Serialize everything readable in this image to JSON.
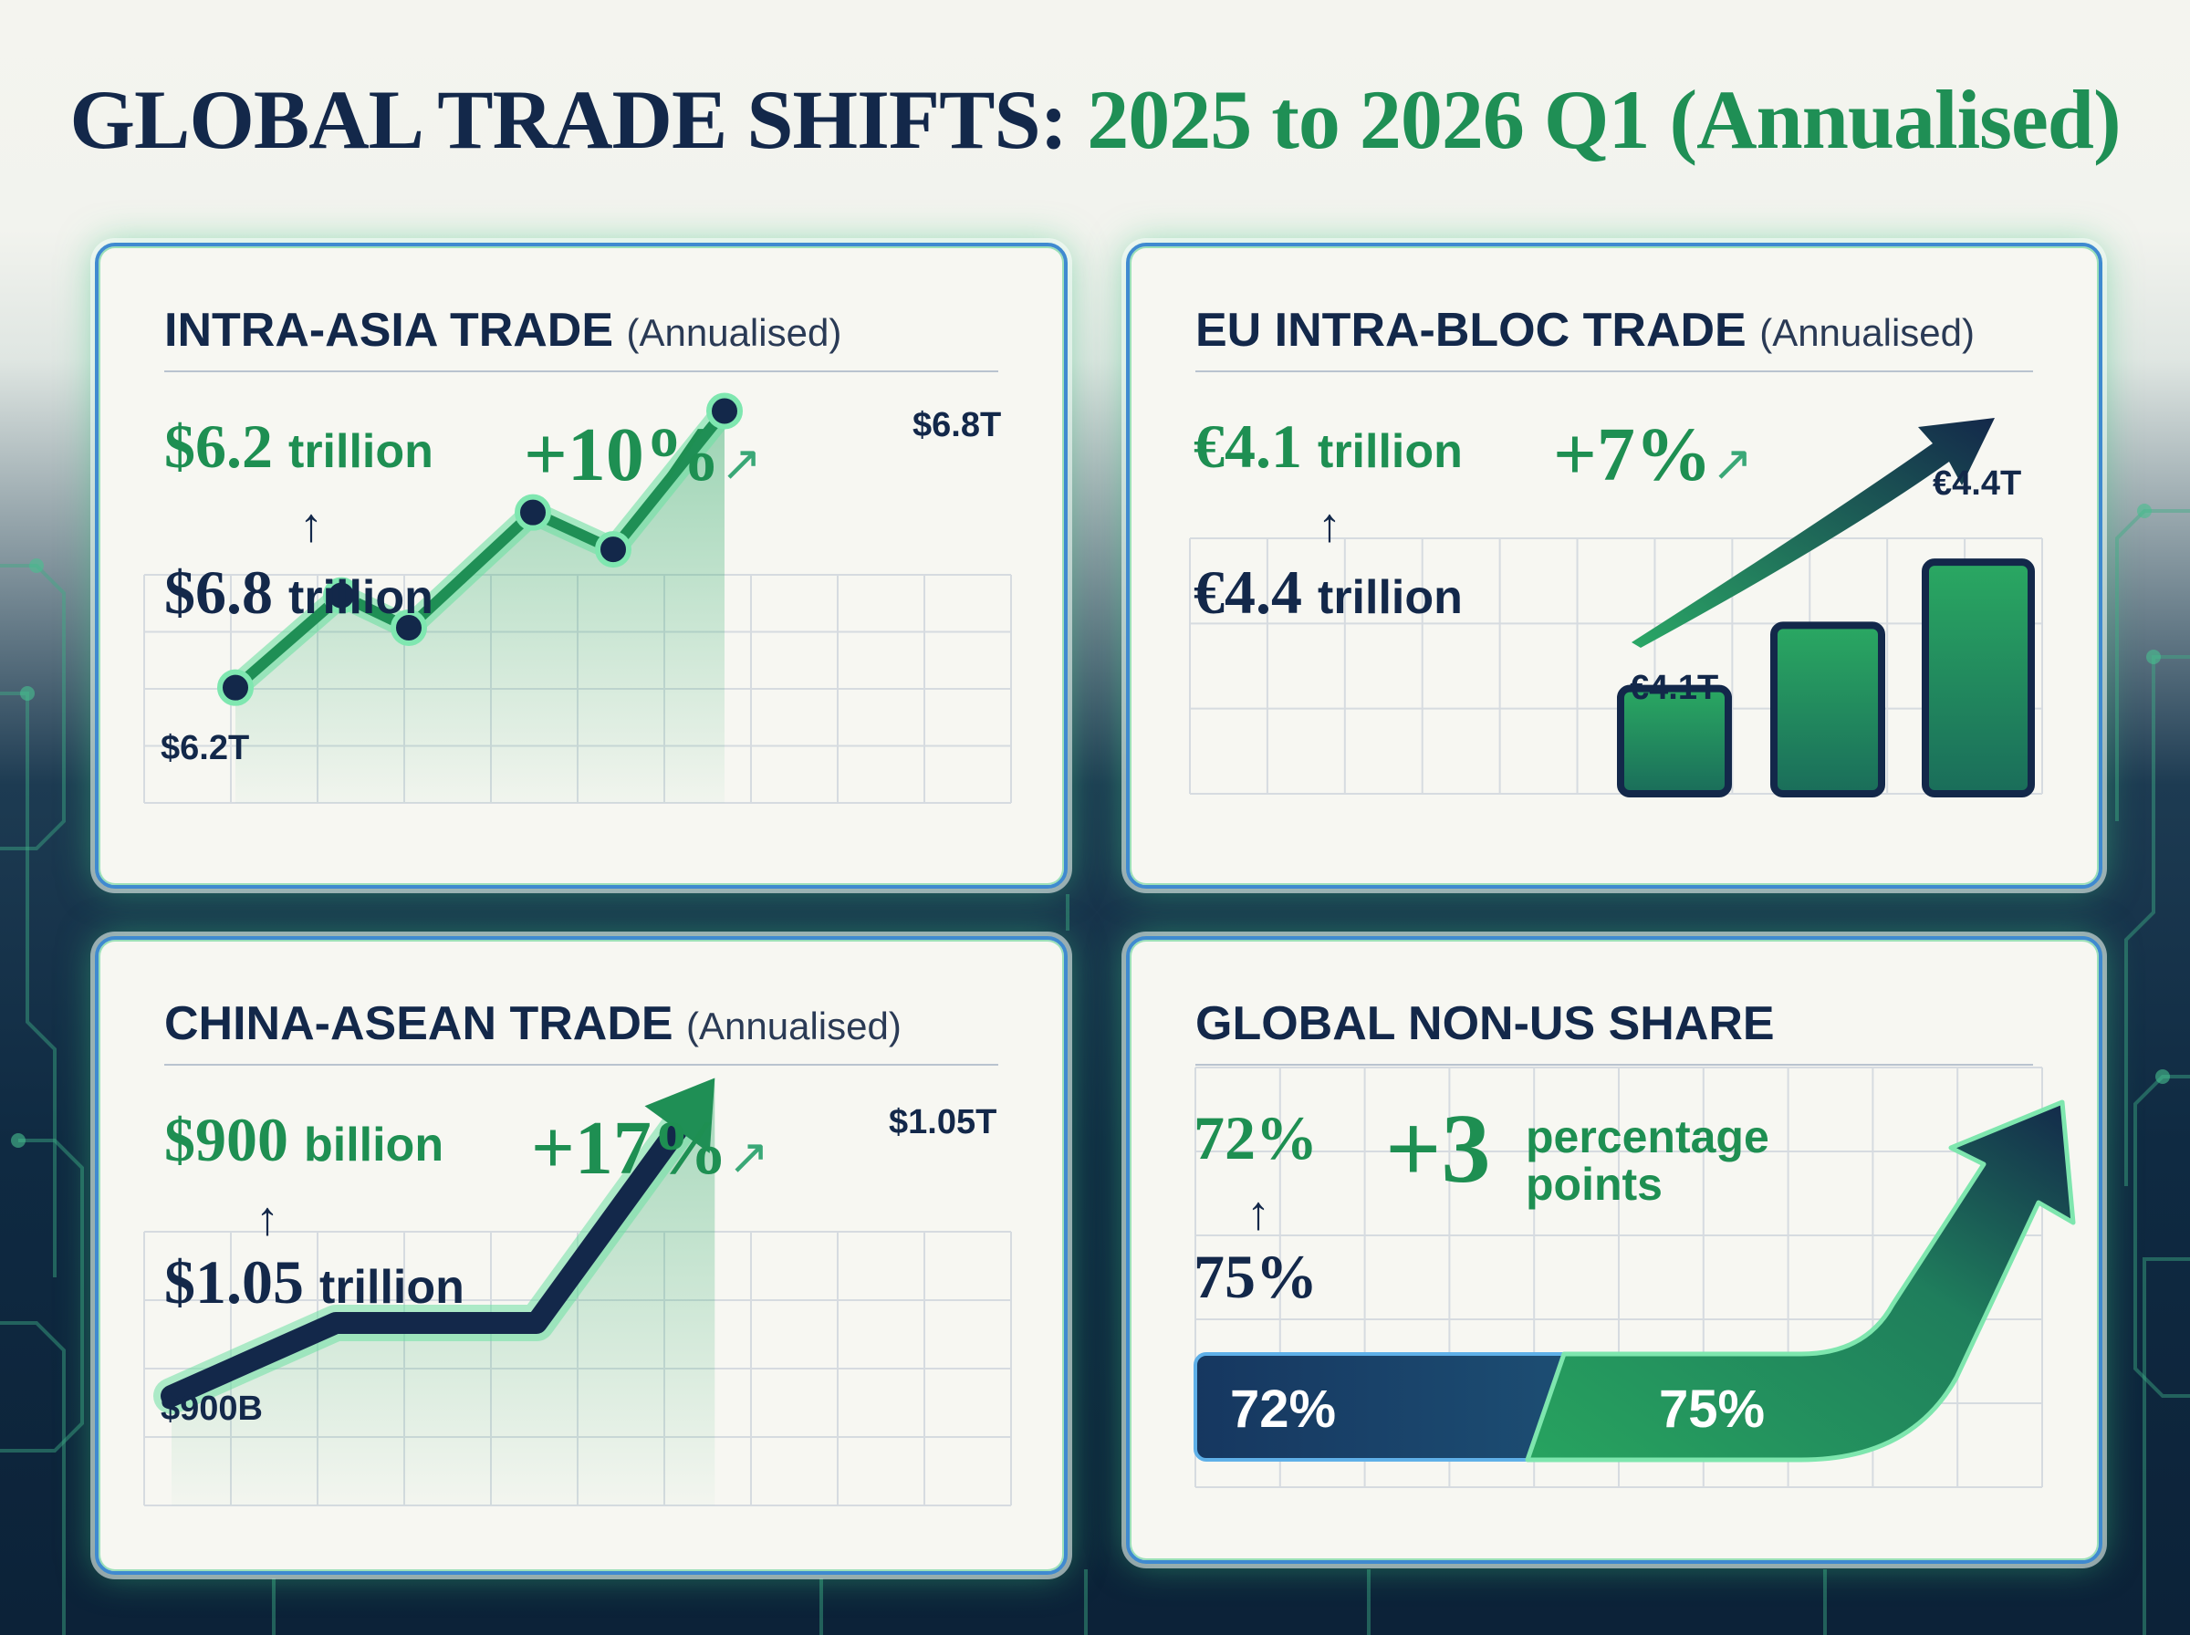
{
  "title": {
    "part1": "GLOBAL TRADE SHIFTS:",
    "part2": "2025 to 2026 Q1 (Annualised)"
  },
  "colors": {
    "navy": "#13284a",
    "green": "#1e8f52",
    "accent_blue": "#3f8ad0"
  },
  "panels": {
    "intra_asia": {
      "title": "INTRA-ASIA TRADE",
      "subtitle": "(Annualised)",
      "from_value": "$6.2",
      "from_unit": "trillion",
      "to_value": "$6.8",
      "to_unit": "trillion",
      "arrow": "↑",
      "change": "+10%",
      "change_icon": "↗",
      "start_label": "$6.2T",
      "end_label": "$6.8T"
    },
    "eu_intra_bloc": {
      "title": "EU INTRA-BLOC TRADE",
      "subtitle": "(Annualised)",
      "from_value": "€4.1",
      "from_unit": "trillion",
      "to_value": "€4.4",
      "to_unit": "trillion",
      "arrow": "↑",
      "change": "+7%",
      "change_icon": "↗",
      "start_label": "€4.1T",
      "end_label": "€4.4T"
    },
    "china_asean": {
      "title": "CHINA-ASEAN TRADE",
      "subtitle": "(Annualised)",
      "from_value": "$900",
      "from_unit": "billion",
      "to_value": "$1.05",
      "to_unit": "trillion",
      "arrow": "↑",
      "change": "+17%",
      "change_icon": "↗",
      "start_label": "$900B",
      "end_label": "$1.05T"
    },
    "non_us_share": {
      "title": "GLOBAL NON-US SHARE",
      "from_value": "72%",
      "to_value": "75%",
      "arrow": "↑",
      "change": "+3",
      "change_unit_1": "percentage",
      "change_unit_2": "points",
      "bar_from_label": "72%",
      "bar_to_label": "75%"
    }
  },
  "chart_data": [
    {
      "type": "line",
      "title": "INTRA-ASIA TRADE (Annualised)",
      "x": [
        0,
        1,
        2,
        3,
        4,
        5
      ],
      "values": [
        6.2,
        6.4,
        6.33,
        6.58,
        6.5,
        6.8
      ],
      "ylim": [
        5.95,
        6.9
      ],
      "annotations": [
        "$6.2T",
        "$6.8T"
      ]
    },
    {
      "type": "bar",
      "title": "EU INTRA-BLOC TRADE (Annualised)",
      "categories": [
        "",
        "",
        ""
      ],
      "values": [
        4.1,
        4.25,
        4.4
      ],
      "ylim": [
        3.85,
        4.5
      ],
      "annotations": [
        "€4.1T",
        "€4.4T"
      ]
    },
    {
      "type": "line",
      "title": "CHINA-ASEAN TRADE (Annualised)",
      "x": [
        0,
        1,
        2,
        3
      ],
      "values": [
        0.9,
        0.94,
        0.94,
        1.05
      ],
      "ylim": [
        0.85,
        1.08
      ],
      "annotations": [
        "$900B",
        "$1.05T"
      ]
    },
    {
      "type": "bar",
      "title": "GLOBAL NON-US SHARE",
      "categories": [
        "",
        ""
      ],
      "values": [
        72,
        75
      ],
      "annotations": [
        "72%",
        "75%"
      ]
    }
  ]
}
